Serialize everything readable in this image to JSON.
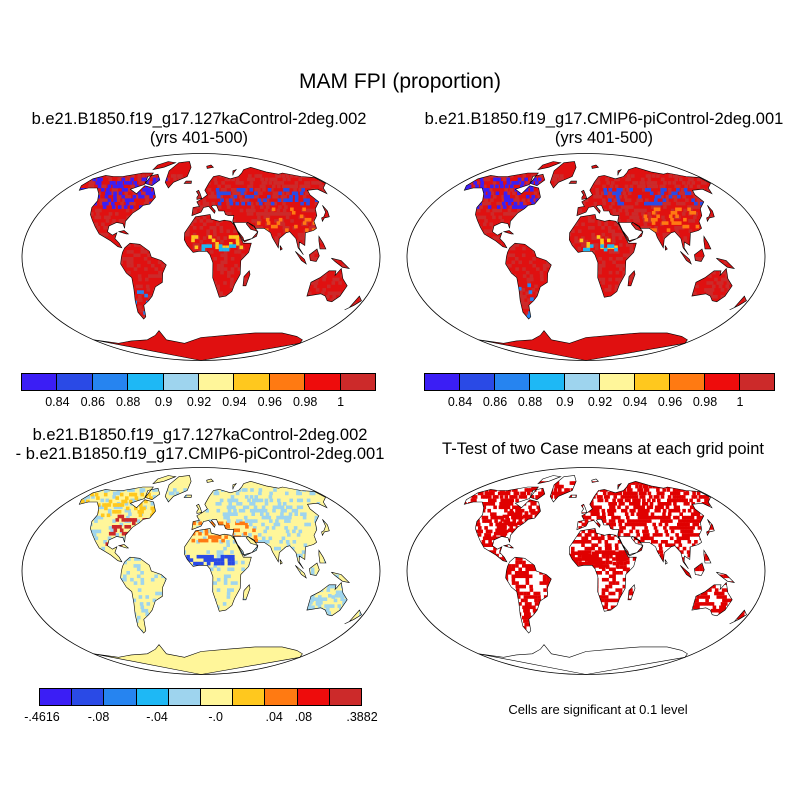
{
  "figure": {
    "title": "MAM FPI (proportion)",
    "note": "Cells are significant at 0.1 level"
  },
  "panels": [
    {
      "id": "case",
      "title_lines": [
        "b.e21.B1850.f19_g17.127kaControl-2deg.002",
        "(yrs 401-500)"
      ],
      "field": "absolute"
    },
    {
      "id": "control",
      "title_lines": [
        "b.e21.B1850.f19_g17.CMIP6-piControl-2deg.001",
        "(yrs 401-500)"
      ],
      "field": "absolute"
    },
    {
      "id": "difference",
      "title_lines": [
        "b.e21.B1850.f19_g17.127kaControl-2deg.002",
        "- b.e21.B1850.f19_g17.CMIP6-piControl-2deg.001"
      ],
      "field": "difference"
    },
    {
      "id": "ttest",
      "title_lines": [
        "T-Test of two Case means at each grid point"
      ],
      "field": "significance"
    }
  ],
  "colorbars": {
    "absolute": {
      "colors": [
        "#3b1ef5",
        "#2a4ae6",
        "#2684f0",
        "#1eb8f5",
        "#9ed4ee",
        "#fff69a",
        "#ffc81e",
        "#ff7a12",
        "#ee0c0c",
        "#cc2a2a"
      ],
      "labels": [
        "0.84",
        "0.86",
        "0.88",
        "0.9",
        "0.92",
        "0.94",
        "0.96",
        "0.98",
        "1"
      ]
    },
    "difference": {
      "colors": [
        "#3b1ef5",
        "#2a4ae6",
        "#2684f0",
        "#1eb8f5",
        "#9ed4ee",
        "#fff69a",
        "#ffc81e",
        "#ff7a12",
        "#ee0c0c",
        "#cc2a2a"
      ],
      "labels": [
        "-.4616",
        "-.08",
        "-.04",
        "-.0",
        ".04",
        ".08",
        ".3882"
      ],
      "label_positions": [
        0,
        2,
        4,
        6,
        8,
        9,
        11
      ]
    }
  },
  "style": {
    "ocean": "#ffffff",
    "coast": "#000000",
    "significant": "#e00000",
    "land_case": [
      "#e01010",
      "#d42020",
      "#ee1818",
      "#cc2a2a"
    ],
    "land_diff": [
      "#fff69a",
      "#fff8b0",
      "#fff1a0"
    ]
  }
}
